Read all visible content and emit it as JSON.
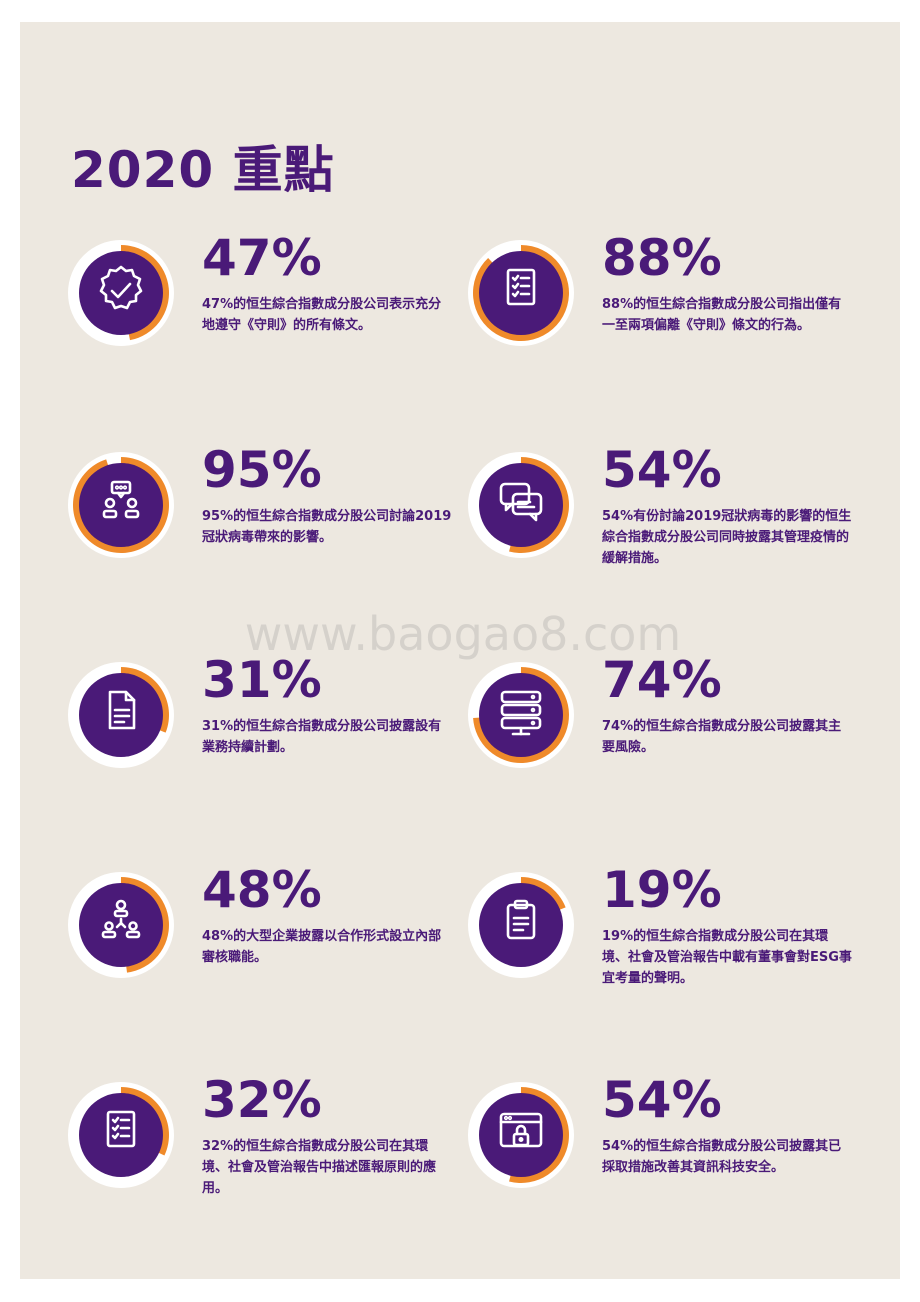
{
  "title": "2020 重點",
  "watermark": "www.baogao8.com",
  "colors": {
    "purple": "#4a1a78",
    "orange": "#ef8a2a",
    "background": "#ede8e0",
    "ring_base": "#ffffff"
  },
  "stats": [
    {
      "percent": "47%",
      "value": 0.47,
      "icon": "badge-check-icon",
      "description": "47%的恒生綜合指數成分股公司表示充分地遵守《守則》的所有條文。"
    },
    {
      "percent": "88%",
      "value": 0.88,
      "icon": "checklist-icon",
      "description": "88%的恒生綜合指數成分股公司指出僅有一至兩項偏離《守則》條文的行為。"
    },
    {
      "percent": "95%",
      "value": 0.95,
      "icon": "meeting-icon",
      "description": "95%的恒生綜合指數成分股公司討論2019冠狀病毒帶來的影響。"
    },
    {
      "percent": "54%",
      "value": 0.54,
      "icon": "chat-bubbles-icon",
      "description": "54%有份討論2019冠狀病毒的影響的恒生綜合指數成分股公司同時披露其管理疫情的緩解措施。"
    },
    {
      "percent": "31%",
      "value": 0.31,
      "icon": "document-icon",
      "description": "31%的恒生綜合指數成分股公司披露設有業務持續計劃。"
    },
    {
      "percent": "74%",
      "value": 0.74,
      "icon": "server-icon",
      "description": "74%的恒生綜合指數成分股公司披露其主要風險。"
    },
    {
      "percent": "48%",
      "value": 0.48,
      "icon": "org-chart-icon",
      "description": "48%的大型企業披露以合作形式設立內部審核職能。"
    },
    {
      "percent": "19%",
      "value": 0.19,
      "icon": "clipboard-icon",
      "description": "19%的恒生綜合指數成分股公司在其環境、社會及管治報告中載有董事會對ESG事宜考量的聲明。"
    },
    {
      "percent": "32%",
      "value": 0.32,
      "icon": "checklist-icon",
      "description": "32%的恒生綜合指數成分股公司在其環境、社會及管治報告中描述匯報原則的應用。"
    },
    {
      "percent": "54%",
      "value": 0.54,
      "icon": "browser-lock-icon",
      "description": "54%的恒生綜合指數成分股公司披露其已採取措施改善其資訊科技安全。"
    }
  ]
}
